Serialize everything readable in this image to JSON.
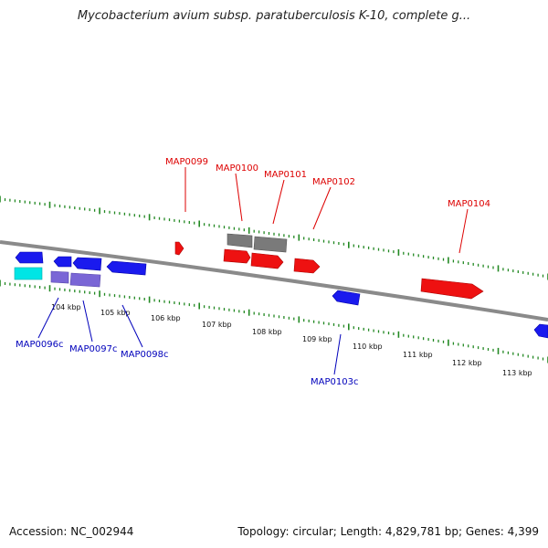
{
  "title": "Mycobacterium avium subsp. paratuberculosis K-10, complete g...",
  "footer": {
    "accession": "Accession: NC_002944",
    "topology": "Topology: circular; Length: 4,829,781 bp; Genes: 4,399"
  },
  "colors": {
    "forward": "#ee0000",
    "reverse": "#0000dd",
    "grey": "#777777",
    "purple": "#7766cc",
    "cyan": "#00dddd",
    "tick": "#228822",
    "backbone": "#888888",
    "label_forward": "#dd0000",
    "label_reverse": "#0000bb"
  },
  "scale_labels": [
    "104 kbp",
    "105 kbp",
    "106 kbp",
    "107 kbp",
    "108 kbp",
    "109 kbp",
    "110 kbp",
    "111 kbp",
    "112 kbp",
    "113 kbp"
  ],
  "gene_labels_forward": [
    "MAP0099",
    "MAP0100",
    "MAP0101",
    "MAP0102",
    "MAP0104"
  ],
  "gene_labels_reverse": [
    "MAP0096c",
    "MAP0097c",
    "MAP0098c",
    "MAP0103c"
  ]
}
